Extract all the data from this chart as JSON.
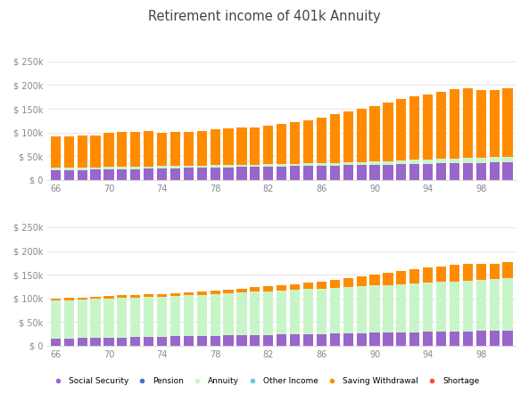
{
  "title": "Retirement income of 401k Annuity",
  "ages": [
    66,
    67,
    68,
    69,
    70,
    71,
    72,
    73,
    74,
    75,
    76,
    77,
    78,
    79,
    80,
    81,
    82,
    83,
    84,
    85,
    86,
    87,
    88,
    89,
    90,
    91,
    92,
    93,
    94,
    95,
    96,
    97,
    98,
    99,
    100
  ],
  "top_social_security": [
    20000,
    20500,
    21000,
    21500,
    22000,
    22500,
    23000,
    23500,
    24000,
    24500,
    25000,
    25500,
    26000,
    26500,
    27000,
    27500,
    28000,
    28500,
    29000,
    29500,
    30000,
    30500,
    31000,
    31500,
    32000,
    32500,
    33000,
    33500,
    34000,
    34500,
    35000,
    35500,
    36000,
    36500,
    37000
  ],
  "top_annuity": [
    5000,
    5000,
    5000,
    5000,
    5000,
    5000,
    5000,
    5000,
    5000,
    5000,
    5000,
    5000,
    5000,
    5000,
    5000,
    5000,
    5000,
    5000,
    5000,
    5000,
    5000,
    5500,
    6000,
    6500,
    7000,
    7500,
    8000,
    8500,
    9000,
    9500,
    10000,
    10500,
    11000,
    11500,
    12000
  ],
  "top_other_income": [
    0,
    0,
    0,
    0,
    0,
    0,
    0,
    0,
    0,
    0,
    0,
    0,
    0,
    0,
    0,
    0,
    0,
    0,
    0,
    0,
    0,
    0,
    0,
    0,
    0,
    0,
    0,
    0,
    0,
    0,
    0,
    0,
    0,
    0,
    0
  ],
  "top_saving_withdrawal": [
    66000,
    67000,
    67000,
    67500,
    72000,
    73000,
    74000,
    75000,
    71000,
    71000,
    72000,
    73000,
    76000,
    77000,
    78000,
    79000,
    82000,
    84000,
    87000,
    92000,
    97000,
    102000,
    107000,
    112000,
    117000,
    124000,
    130000,
    134000,
    137000,
    141000,
    146000,
    147000,
    142000,
    142000,
    145000
  ],
  "top_shortage": [
    0,
    0,
    0,
    0,
    0,
    0,
    0,
    0,
    0,
    0,
    0,
    0,
    0,
    0,
    0,
    0,
    0,
    0,
    0,
    0,
    0,
    0,
    0,
    0,
    0,
    0,
    0,
    0,
    0,
    0,
    0,
    0,
    0,
    0,
    0
  ],
  "bot_social_security": [
    15000,
    15500,
    16000,
    16500,
    17000,
    17500,
    18000,
    18500,
    19000,
    19500,
    20000,
    20500,
    21000,
    21500,
    22000,
    22500,
    23000,
    23500,
    24000,
    24500,
    25000,
    25500,
    26000,
    26500,
    27000,
    27500,
    28000,
    28500,
    29000,
    29500,
    30000,
    30500,
    31000,
    31500,
    32000
  ],
  "bot_annuity": [
    80000,
    81000,
    81500,
    82000,
    82500,
    83000,
    83500,
    84000,
    84500,
    85000,
    86000,
    87000,
    88000,
    89000,
    90000,
    91000,
    92000,
    93000,
    94000,
    95000,
    96000,
    97000,
    98000,
    99000,
    100000,
    101000,
    102000,
    103000,
    104000,
    105000,
    106000,
    107000,
    108000,
    109000,
    110000
  ],
  "bot_other_income": [
    0,
    0,
    0,
    0,
    0,
    0,
    0,
    0,
    0,
    0,
    0,
    0,
    0,
    0,
    0,
    0,
    0,
    0,
    0,
    0,
    0,
    0,
    0,
    0,
    0,
    0,
    0,
    0,
    0,
    0,
    0,
    0,
    0,
    0,
    0
  ],
  "bot_saving_withdrawal": [
    4000,
    4000,
    4500,
    4500,
    5000,
    5500,
    6000,
    6500,
    5000,
    5500,
    6000,
    6500,
    8000,
    8500,
    9000,
    9500,
    10000,
    11000,
    12000,
    14000,
    15000,
    17000,
    19000,
    21000,
    23000,
    26000,
    28000,
    30000,
    32000,
    33000,
    35000,
    35000,
    33000,
    33000,
    35000
  ],
  "bot_shortage": [
    0,
    0,
    0,
    0,
    0,
    0,
    0,
    0,
    0,
    0,
    0,
    0,
    0,
    0,
    0,
    0,
    0,
    0,
    0,
    0,
    0,
    0,
    0,
    0,
    0,
    0,
    0,
    0,
    0,
    0,
    0,
    0,
    0,
    0,
    0
  ],
  "colors": {
    "social_security": "#9966CC",
    "pension": "#4472C4",
    "annuity": "#C8F5C8",
    "other_income": "#70C8C8",
    "saving_withdrawal": "#FF8C00",
    "shortage": "#FF4444"
  },
  "legend_labels": [
    "Social Security",
    "Pension",
    "Annuity",
    "Other Income",
    "Saving Withdrawal",
    "Shortage"
  ],
  "ylim": [
    0,
    250000
  ],
  "yticks": [
    0,
    50000,
    100000,
    150000,
    200000,
    250000
  ],
  "background_color": "#FFFFFF",
  "grid_color": "#E8E8E8",
  "xticks": [
    66,
    70,
    74,
    78,
    82,
    86,
    90,
    94,
    98
  ]
}
